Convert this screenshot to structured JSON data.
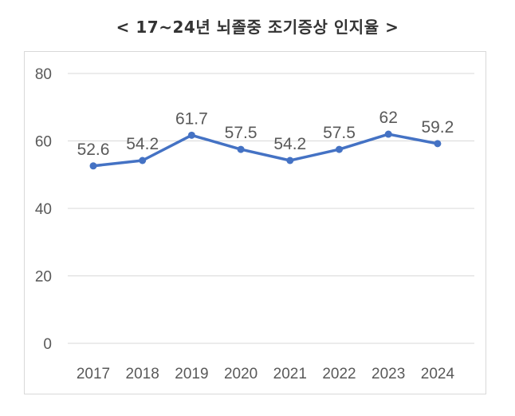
{
  "chart_data": {
    "type": "line",
    "title": "< 17~24년 뇌졸중 조기증상 인지율 >",
    "categories": [
      "2017",
      "2018",
      "2019",
      "2020",
      "2021",
      "2022",
      "2023",
      "2024"
    ],
    "series": [
      {
        "values": [
          52.6,
          54.2,
          61.7,
          57.5,
          54.2,
          57.5,
          62,
          59.2
        ],
        "labels": [
          "52.6",
          "54.2",
          "61.7",
          "57.5",
          "54.2",
          "57.5",
          "62",
          "59.2"
        ]
      }
    ],
    "yticks": [
      "0",
      "20",
      "40",
      "60",
      "80"
    ],
    "ylim": [
      0,
      80
    ],
    "grid": true,
    "legend": "none",
    "line_color": "#4472c4",
    "grid_color": "#d9d9d9",
    "text_color": "#595959"
  }
}
